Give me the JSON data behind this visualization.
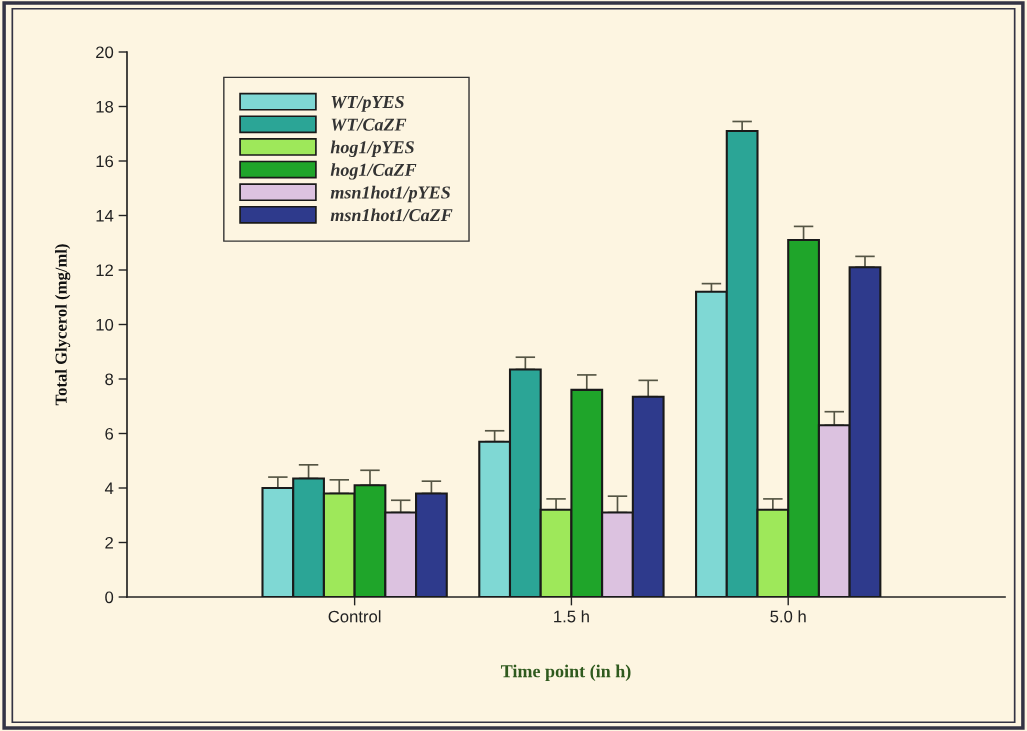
{
  "chart_data": {
    "type": "bar",
    "xlabel": "Time point (in h)",
    "ylabel": "Total Glycerol (mg/ml)",
    "categories": [
      "Control",
      "1.5 h",
      "5.0 h"
    ],
    "series": [
      {
        "name": "WT/pYES",
        "color": "#7fd8d4",
        "values": [
          4.0,
          5.7,
          11.2
        ],
        "errors": [
          [
            4.0,
            4.4
          ],
          [
            5.7,
            6.1
          ],
          [
            11.2,
            11.5
          ]
        ]
      },
      {
        "name": "WT/CaZF",
        "color": "#2ba596",
        "values": [
          4.35,
          8.35,
          17.1
        ],
        "errors": [
          [
            4.35,
            4.85
          ],
          [
            8.35,
            8.8
          ],
          [
            17.1,
            17.45
          ]
        ]
      },
      {
        "name": "hog1/pYES",
        "color": "#9ee85a",
        "values": [
          3.8,
          3.2,
          3.2
        ],
        "errors": [
          [
            3.8,
            4.3
          ],
          [
            3.2,
            3.6
          ],
          [
            3.2,
            3.6
          ]
        ]
      },
      {
        "name": "hog1/CaZF",
        "color": "#1fa52a",
        "values": [
          4.1,
          7.6,
          13.1
        ],
        "errors": [
          [
            4.1,
            4.65
          ],
          [
            7.6,
            8.15
          ],
          [
            13.1,
            13.6
          ]
        ]
      },
      {
        "name": "msn1hot1/pYES",
        "color": "#dcc2e0",
        "values": [
          3.1,
          3.1,
          6.3
        ],
        "errors": [
          [
            3.1,
            3.55
          ],
          [
            3.1,
            3.7
          ],
          [
            6.3,
            6.8
          ]
        ]
      },
      {
        "name": "msn1hot1/CaZF",
        "color": "#2e3a8c",
        "values": [
          3.8,
          7.35,
          12.1
        ],
        "errors": [
          [
            3.8,
            4.25
          ],
          [
            7.35,
            7.95
          ],
          [
            12.1,
            12.5
          ]
        ]
      }
    ],
    "ylim": [
      0,
      20
    ],
    "yticks": [
      0,
      2,
      4,
      6,
      8,
      10,
      12,
      14,
      16,
      18,
      20
    ],
    "grid": false,
    "legend": "top left"
  }
}
